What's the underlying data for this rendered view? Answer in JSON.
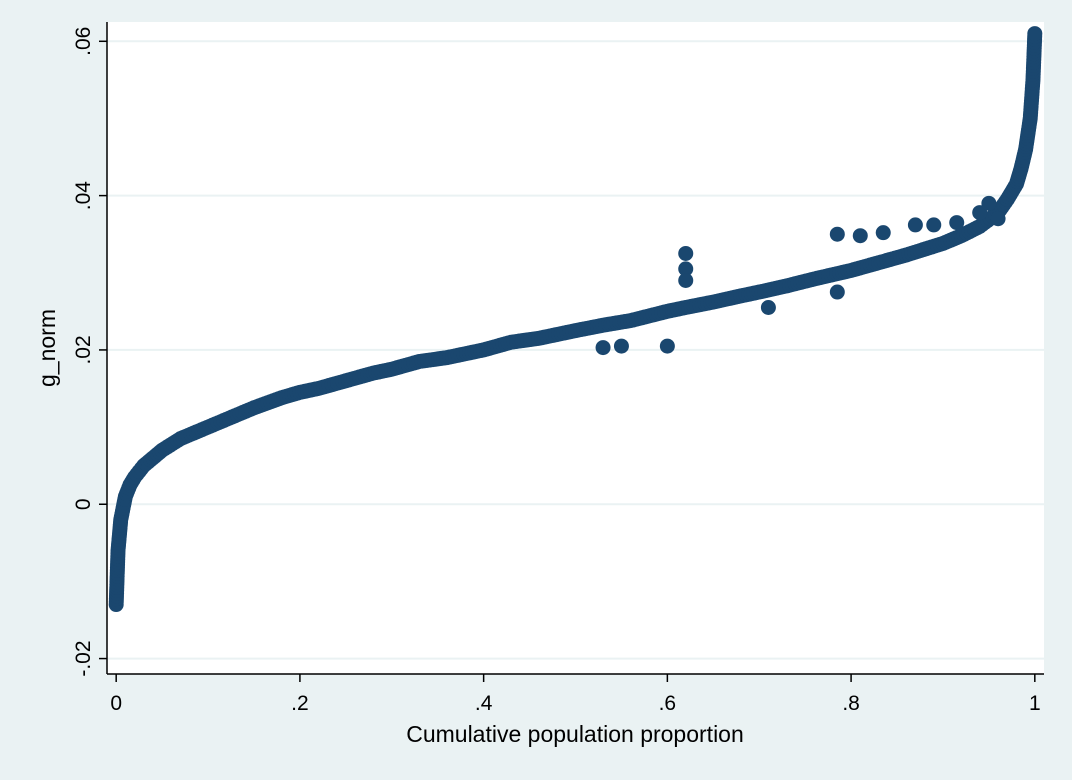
{
  "chart_data": {
    "type": "scatter",
    "title": "",
    "xlabel": "Cumulative population proportion",
    "ylabel": "g_norm",
    "xlim": [
      -0.01,
      1.01
    ],
    "ylim": [
      -0.022,
      0.0625
    ],
    "x_ticks": [
      {
        "value": 0,
        "label": "0"
      },
      {
        "value": 0.2,
        "label": ".2"
      },
      {
        "value": 0.4,
        "label": ".4"
      },
      {
        "value": 0.6,
        "label": ".6"
      },
      {
        "value": 0.8,
        "label": ".8"
      },
      {
        "value": 1,
        "label": "1"
      }
    ],
    "y_ticks": [
      {
        "value": -0.02,
        "label": "-.02"
      },
      {
        "value": 0,
        "label": "0"
      },
      {
        "value": 0.02,
        "label": ".02"
      },
      {
        "value": 0.04,
        "label": ".04"
      },
      {
        "value": 0.06,
        "label": ".06"
      }
    ],
    "grid": "horizontal",
    "legend": "none",
    "colors": {
      "background": "#eaf2f3",
      "plot_background": "#ffffff",
      "gridline": "#eaf2f3",
      "marker": "#1a476f"
    },
    "series": [
      {
        "marker": "filled-circle",
        "x": [
          0,
          0.002,
          0.005,
          0.01,
          0.015,
          0.02,
          0.03,
          0.04,
          0.05,
          0.07,
          0.09,
          0.12,
          0.15,
          0.18,
          0.2,
          0.22,
          0.25,
          0.28,
          0.3,
          0.33,
          0.36,
          0.4,
          0.43,
          0.46,
          0.5,
          0.53,
          0.56,
          0.6,
          0.62,
          0.65,
          0.68,
          0.7,
          0.73,
          0.76,
          0.8,
          0.83,
          0.86,
          0.9,
          0.92,
          0.94,
          0.96,
          0.97,
          0.98,
          0.985,
          0.99,
          0.995,
          0.998,
          1.0
        ],
        "y": [
          -0.013,
          -0.006,
          -0.002,
          0.001,
          0.0025,
          0.0035,
          0.005,
          0.006,
          0.007,
          0.0085,
          0.0095,
          0.011,
          0.0125,
          0.0138,
          0.0145,
          0.015,
          0.016,
          0.017,
          0.0175,
          0.0185,
          0.019,
          0.02,
          0.021,
          0.0215,
          0.0225,
          0.0232,
          0.0238,
          0.025,
          0.0255,
          0.0262,
          0.027,
          0.0275,
          0.0283,
          0.0292,
          0.0303,
          0.0313,
          0.0323,
          0.0338,
          0.0348,
          0.036,
          0.0378,
          0.0395,
          0.0415,
          0.0435,
          0.046,
          0.05,
          0.055,
          0.061
        ],
        "outliers": {
          "x": [
            0.62,
            0.62,
            0.62,
            0.53,
            0.6,
            0.785,
            0.81,
            0.835,
            0.87,
            0.89,
            0.915,
            0.94,
            0.95,
            0.96,
            0.785,
            0.71,
            0.55
          ],
          "y": [
            0.0325,
            0.0305,
            0.029,
            0.0203,
            0.0205,
            0.035,
            0.0348,
            0.0352,
            0.0362,
            0.0362,
            0.0365,
            0.0378,
            0.039,
            0.037,
            0.0275,
            0.0255,
            0.0205
          ]
        }
      }
    ]
  }
}
